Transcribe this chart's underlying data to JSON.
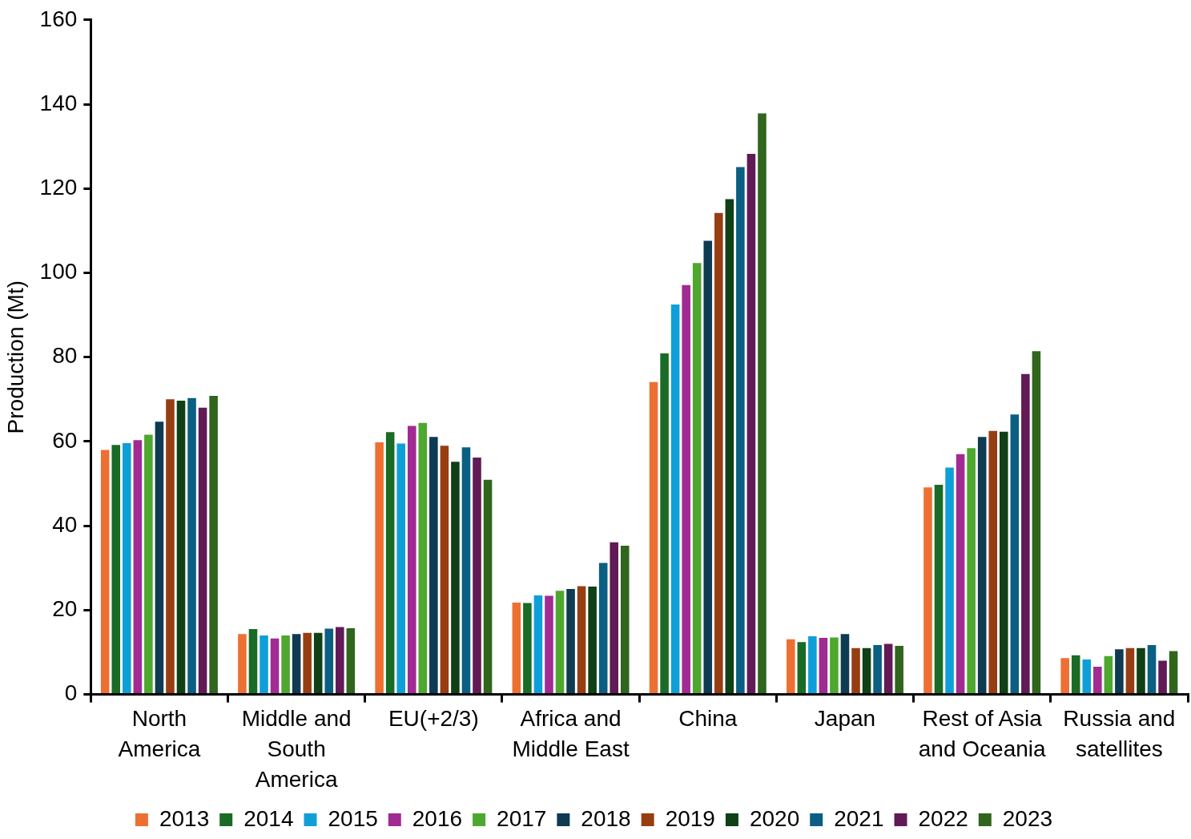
{
  "chart_data": {
    "type": "bar",
    "ylabel": "Production (Mt)",
    "categories": [
      "North America",
      "Middle and South America",
      "EU(+2/3)",
      "Africa and Middle East",
      "China",
      "Japan",
      "Rest of Asia and Oceania",
      "Russia and satellites"
    ],
    "series": [
      {
        "name": "2013",
        "color": "#ed7032",
        "values": [
          58,
          14.3,
          59.8,
          21.8,
          74.1,
          13.1,
          49.1,
          8.6
        ]
      },
      {
        "name": "2014",
        "color": "#1a6b25",
        "values": [
          59.2,
          15.5,
          62.2,
          21.7,
          80.9,
          12.4,
          49.7,
          9.3
        ]
      },
      {
        "name": "2015",
        "color": "#0f9fd8",
        "values": [
          59.6,
          14,
          59.5,
          23.5,
          92.5,
          13.8,
          53.8,
          8.3
        ]
      },
      {
        "name": "2016",
        "color": "#a12a93",
        "values": [
          60.3,
          13.3,
          63.7,
          23.4,
          97.1,
          13.4,
          57,
          6.6
        ]
      },
      {
        "name": "2017",
        "color": "#4ea72e",
        "values": [
          61.6,
          14,
          64.4,
          24.6,
          102.3,
          13.5,
          58.4,
          9.1
        ]
      },
      {
        "name": "2018",
        "color": "#0e3a52",
        "values": [
          64.7,
          14.3,
          61.1,
          25,
          107.6,
          14.3,
          61.1,
          10.7
        ]
      },
      {
        "name": "2019",
        "color": "#963e12",
        "values": [
          70,
          14.6,
          59,
          25.7,
          114.2,
          11,
          62.5,
          11
        ]
      },
      {
        "name": "2020",
        "color": "#0f4016",
        "values": [
          69.7,
          14.6,
          55.2,
          25.6,
          117.5,
          11,
          62.3,
          11
        ]
      },
      {
        "name": "2021",
        "color": "#0a5f82",
        "values": [
          70.3,
          15.6,
          58.6,
          31.2,
          125.1,
          11.7,
          66.4,
          11.7
        ]
      },
      {
        "name": "2022",
        "color": "#611a55",
        "values": [
          68,
          16,
          56.2,
          36.1,
          128.2,
          12,
          76,
          8
        ]
      },
      {
        "name": "2023",
        "color": "#2f651c",
        "values": [
          70.8,
          15.7,
          50.9,
          35.3,
          137.8,
          11.5,
          81.4,
          10.3
        ]
      }
    ],
    "ylim": [
      0,
      160
    ],
    "yticks": [
      0,
      20,
      40,
      60,
      80,
      100,
      120,
      140,
      160
    ],
    "grid": false,
    "legend": "bottom"
  }
}
